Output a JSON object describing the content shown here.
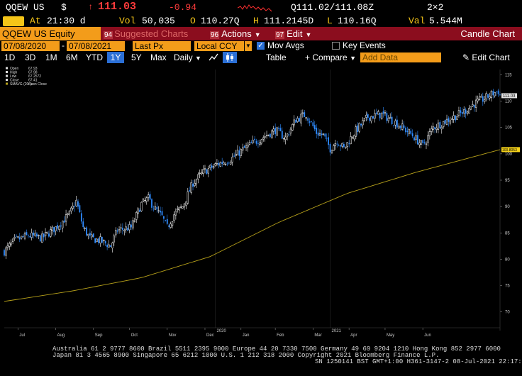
{
  "quote": {
    "ticker": "QQEW US",
    "currency": "$",
    "arrow": "↑",
    "last": "111.03",
    "change": "-0.94",
    "bid_ask": "Q111.02/111.08Z",
    "size": "2×2"
  },
  "info": {
    "at_label": "At",
    "time": "21:30 d",
    "vol_label": "Vol",
    "volume": "50,035",
    "open_label": "O",
    "open": "110.27Q",
    "high_label": "H",
    "high": "111.2145D",
    "low_label": "L",
    "low": "110.16Q",
    "val_label": "Val",
    "value": "5.544M"
  },
  "menu": {
    "security": "QQEW US Equity",
    "suggested": "Suggested Charts",
    "suggested_num": "94",
    "actions": "Actions",
    "actions_num": "96",
    "edit": "Edit",
    "edit_num": "97",
    "title": "Candle Chart"
  },
  "params": {
    "start_date": "07/08/2020",
    "end_date": "07/08/2021",
    "field": "Last Px",
    "currency": "Local CCY",
    "mov_avgs": "Mov Avgs",
    "key_events": "Key Events"
  },
  "toolbar": {
    "periods": [
      "1D",
      "3D",
      "1M",
      "6M",
      "YTD",
      "1Y",
      "5Y",
      "Max"
    ],
    "active_period": "1Y",
    "frequency": "Daily",
    "table": "Table",
    "compare": "Compare",
    "add_data_placeholder": "Add Data",
    "edit_chart": "Edit Chart"
  },
  "chart_data": {
    "type": "candlestick",
    "legend": [
      {
        "label": "Open",
        "value": "67.93"
      },
      {
        "label": "High",
        "value": "67.98"
      },
      {
        "label": "Low",
        "value": "67.2572"
      },
      {
        "label": "Close",
        "value": "67.41"
      },
      {
        "label": "SMAVG (200)  on Close",
        "value": "n.a."
      }
    ],
    "ylim": [
      67,
      116
    ],
    "y_ticks": [
      70,
      75,
      80,
      85,
      90,
      95,
      100,
      105,
      110,
      115
    ],
    "x_months": [
      "Jul",
      "Aug",
      "Sep",
      "Oct",
      "Nov",
      "Dec",
      "Jan",
      "Feb",
      "Mar",
      "Apr",
      "May",
      "Jun"
    ],
    "year_marks": [
      "2020",
      "2021"
    ],
    "last_price_label": "111.03",
    "sma_last_label": "100.8053",
    "colors": {
      "up": "#ffffff",
      "down": "#2e8bff",
      "sma": "#b8a21a",
      "last_badge": "#e0e0e0",
      "sma_badge": "#f5d21a"
    },
    "close_path": [
      {
        "d": 0,
        "c": 81.5
      },
      {
        "d": 6,
        "c": 83.5
      },
      {
        "d": 14,
        "c": 84.5
      },
      {
        "d": 22,
        "c": 84.0
      },
      {
        "d": 30,
        "c": 86.0
      },
      {
        "d": 38,
        "c": 88.5
      },
      {
        "d": 42,
        "c": 91.0
      },
      {
        "d": 46,
        "c": 86.0
      },
      {
        "d": 50,
        "c": 84.0
      },
      {
        "d": 56,
        "c": 83.5
      },
      {
        "d": 62,
        "c": 82.5
      },
      {
        "d": 66,
        "c": 85.5
      },
      {
        "d": 74,
        "c": 86.0
      },
      {
        "d": 80,
        "c": 90.5
      },
      {
        "d": 84,
        "c": 91.5
      },
      {
        "d": 88,
        "c": 89.5
      },
      {
        "d": 92,
        "c": 88.0
      },
      {
        "d": 95,
        "c": 86.0
      },
      {
        "d": 99,
        "c": 88.5
      },
      {
        "d": 104,
        "c": 90.0
      },
      {
        "d": 110,
        "c": 94.5
      },
      {
        "d": 116,
        "c": 96.5
      },
      {
        "d": 124,
        "c": 98.0
      },
      {
        "d": 132,
        "c": 99.0
      },
      {
        "d": 140,
        "c": 101.0
      },
      {
        "d": 150,
        "c": 103.0
      },
      {
        "d": 158,
        "c": 104.5
      },
      {
        "d": 164,
        "c": 103.0
      },
      {
        "d": 170,
        "c": 106.5
      },
      {
        "d": 176,
        "c": 107.5
      },
      {
        "d": 182,
        "c": 104.0
      },
      {
        "d": 186,
        "c": 103.5
      },
      {
        "d": 190,
        "c": 101.0
      },
      {
        "d": 194,
        "c": 102.5
      },
      {
        "d": 198,
        "c": 101.0
      },
      {
        "d": 204,
        "c": 104.0
      },
      {
        "d": 212,
        "c": 107.0
      },
      {
        "d": 220,
        "c": 107.5
      },
      {
        "d": 228,
        "c": 106.0
      },
      {
        "d": 234,
        "c": 104.5
      },
      {
        "d": 238,
        "c": 103.5
      },
      {
        "d": 244,
        "c": 101.5
      },
      {
        "d": 250,
        "c": 105.0
      },
      {
        "d": 256,
        "c": 106.0
      },
      {
        "d": 262,
        "c": 107.0
      },
      {
        "d": 268,
        "c": 108.0
      },
      {
        "d": 274,
        "c": 109.5
      },
      {
        "d": 280,
        "c": 110.5
      },
      {
        "d": 285,
        "c": 111.5
      },
      {
        "d": 288,
        "c": 111.9
      },
      {
        "d": 289,
        "c": 111.03
      }
    ],
    "sma_path": [
      {
        "d": 0,
        "v": 72.0
      },
      {
        "d": 40,
        "v": 74.0
      },
      {
        "d": 80,
        "v": 76.5
      },
      {
        "d": 120,
        "v": 80.5
      },
      {
        "d": 160,
        "v": 87.0
      },
      {
        "d": 200,
        "v": 92.5
      },
      {
        "d": 240,
        "v": 96.5
      },
      {
        "d": 289,
        "v": 100.8
      }
    ]
  },
  "footer": {
    "line1": "Australia 61 2 9777 8600 Brazil 5511 2395 9000 Europe 44 20 7330 7500 Germany 49 69 9204 1210 Hong Kong 852 2977 6000",
    "line2": "Japan 81 3 4565 8900      Singapore 65 6212 1000      U.S. 1 212 318 2000          Copyright 2021 Bloomberg Finance L.P.",
    "line3": "SN 1250141 BST  GMT+1:00 H361-3147-2 08-Jul-2021 22:17:21"
  }
}
